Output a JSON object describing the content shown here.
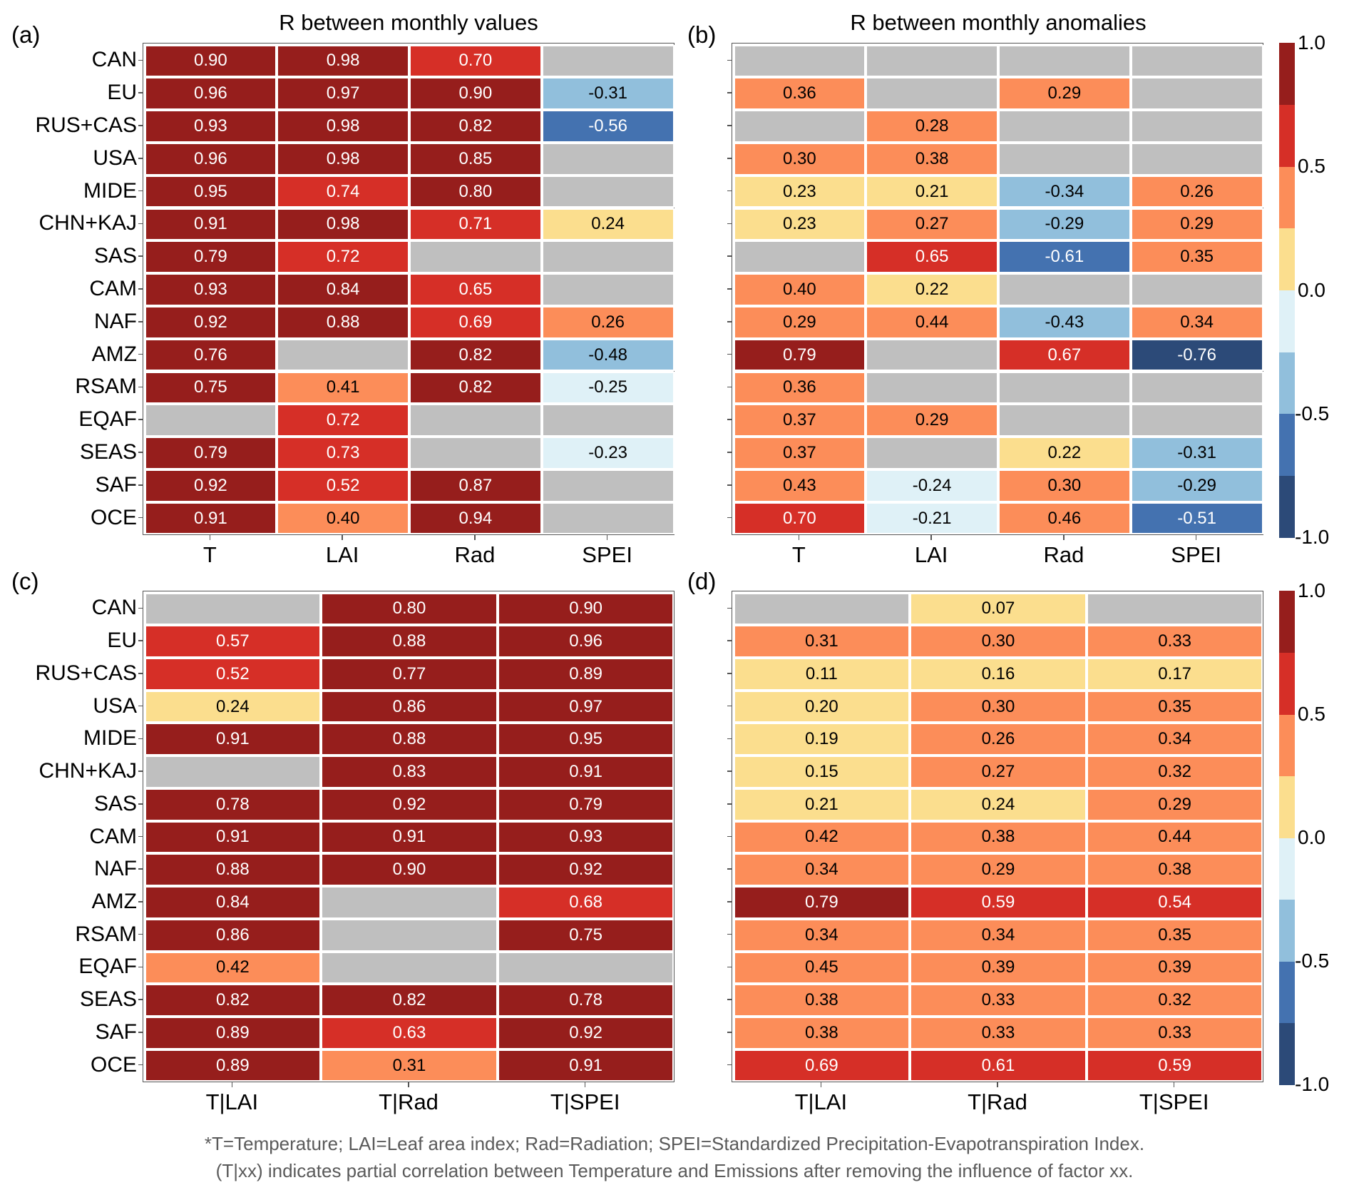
{
  "chart_data": [
    {
      "id": "a",
      "type": "heatmap",
      "panel_label": "(a)",
      "title": "R between monthly values",
      "rows": [
        "CAN",
        "EU",
        "RUS+CAS",
        "USA",
        "MIDE",
        "CHN+KAJ",
        "SAS",
        "CAM",
        "NAF",
        "AMZ",
        "RSAM",
        "EQAF",
        "SEAS",
        "SAF",
        "OCE"
      ],
      "columns": [
        "T",
        "LAI",
        "Rad",
        "SPEI"
      ],
      "show_row_labels": true,
      "values": [
        [
          0.9,
          0.98,
          0.7,
          null
        ],
        [
          0.96,
          0.97,
          0.9,
          -0.31
        ],
        [
          0.93,
          0.98,
          0.82,
          -0.56
        ],
        [
          0.96,
          0.98,
          0.85,
          null
        ],
        [
          0.95,
          0.74,
          0.8,
          null
        ],
        [
          0.91,
          0.98,
          0.71,
          0.24
        ],
        [
          0.79,
          0.72,
          null,
          null
        ],
        [
          0.93,
          0.84,
          0.65,
          null
        ],
        [
          0.92,
          0.88,
          0.69,
          0.26
        ],
        [
          0.76,
          null,
          0.82,
          -0.48
        ],
        [
          0.75,
          0.41,
          0.82,
          -0.25
        ],
        [
          null,
          0.72,
          null,
          null
        ],
        [
          0.79,
          0.73,
          null,
          -0.23
        ],
        [
          0.92,
          0.52,
          0.87,
          null
        ],
        [
          0.91,
          0.4,
          0.94,
          null
        ]
      ]
    },
    {
      "id": "b",
      "type": "heatmap",
      "panel_label": "(b)",
      "title": "R between monthly anomalies",
      "rows": [
        "CAN",
        "EU",
        "RUS+CAS",
        "USA",
        "MIDE",
        "CHN+KAJ",
        "SAS",
        "CAM",
        "NAF",
        "AMZ",
        "RSAM",
        "EQAF",
        "SEAS",
        "SAF",
        "OCE"
      ],
      "columns": [
        "T",
        "LAI",
        "Rad",
        "SPEI"
      ],
      "show_row_labels": false,
      "values": [
        [
          null,
          null,
          null,
          null
        ],
        [
          0.36,
          null,
          0.29,
          null
        ],
        [
          null,
          0.28,
          null,
          null
        ],
        [
          0.3,
          0.38,
          null,
          null
        ],
        [
          0.23,
          0.21,
          -0.34,
          0.26
        ],
        [
          0.23,
          0.27,
          -0.29,
          0.29
        ],
        [
          null,
          0.65,
          -0.61,
          0.35
        ],
        [
          0.4,
          0.22,
          null,
          null
        ],
        [
          0.29,
          0.44,
          -0.43,
          0.34
        ],
        [
          0.79,
          null,
          0.67,
          -0.76
        ],
        [
          0.36,
          null,
          null,
          null
        ],
        [
          0.37,
          0.29,
          null,
          null
        ],
        [
          0.37,
          null,
          0.22,
          -0.31
        ],
        [
          0.43,
          -0.24,
          0.3,
          -0.29
        ],
        [
          0.7,
          -0.21,
          0.46,
          -0.51
        ]
      ],
      "colorbar": {
        "ticks": [
          "1.0",
          "0.5",
          "0.0",
          "-0.5",
          "-1.0"
        ],
        "range": [
          -1.0,
          1.0
        ]
      }
    },
    {
      "id": "c",
      "type": "heatmap",
      "panel_label": "(c)",
      "title": "",
      "rows": [
        "CAN",
        "EU",
        "RUS+CAS",
        "USA",
        "MIDE",
        "CHN+KAJ",
        "SAS",
        "CAM",
        "NAF",
        "AMZ",
        "RSAM",
        "EQAF",
        "SEAS",
        "SAF",
        "OCE"
      ],
      "columns": [
        "T|LAI",
        "T|Rad",
        "T|SPEI"
      ],
      "show_row_labels": true,
      "values": [
        [
          null,
          0.8,
          0.9
        ],
        [
          0.57,
          0.88,
          0.96
        ],
        [
          0.52,
          0.77,
          0.89
        ],
        [
          0.24,
          0.86,
          0.97
        ],
        [
          0.91,
          0.88,
          0.95
        ],
        [
          null,
          0.83,
          0.91
        ],
        [
          0.78,
          0.92,
          0.79
        ],
        [
          0.91,
          0.91,
          0.93
        ],
        [
          0.88,
          0.9,
          0.92
        ],
        [
          0.84,
          null,
          0.68
        ],
        [
          0.86,
          null,
          0.75
        ],
        [
          0.42,
          null,
          null
        ],
        [
          0.82,
          0.82,
          0.78
        ],
        [
          0.89,
          0.63,
          0.92
        ],
        [
          0.89,
          0.31,
          0.91
        ]
      ]
    },
    {
      "id": "d",
      "type": "heatmap",
      "panel_label": "(d)",
      "title": "",
      "rows": [
        "CAN",
        "EU",
        "RUS+CAS",
        "USA",
        "MIDE",
        "CHN+KAJ",
        "SAS",
        "CAM",
        "NAF",
        "AMZ",
        "RSAM",
        "EQAF",
        "SEAS",
        "SAF",
        "OCE"
      ],
      "columns": [
        "T|LAI",
        "T|Rad",
        "T|SPEI"
      ],
      "show_row_labels": false,
      "values": [
        [
          null,
          0.07,
          null
        ],
        [
          0.31,
          0.3,
          0.33
        ],
        [
          0.11,
          0.16,
          0.17
        ],
        [
          0.2,
          0.3,
          0.35
        ],
        [
          0.19,
          0.26,
          0.34
        ],
        [
          0.15,
          0.27,
          0.32
        ],
        [
          0.21,
          0.24,
          0.29
        ],
        [
          0.42,
          0.38,
          0.44
        ],
        [
          0.34,
          0.29,
          0.38
        ],
        [
          0.79,
          0.59,
          0.54
        ],
        [
          0.34,
          0.34,
          0.35
        ],
        [
          0.45,
          0.39,
          0.39
        ],
        [
          0.38,
          0.33,
          0.32
        ],
        [
          0.38,
          0.33,
          0.33
        ],
        [
          0.69,
          0.61,
          0.59
        ]
      ],
      "colorbar": {
        "ticks": [
          "1.0",
          "0.5",
          "0.0",
          "-0.5",
          "-1.0"
        ],
        "range": [
          -1.0,
          1.0
        ]
      }
    }
  ],
  "colormap": {
    "bin_width": 0.25,
    "bins_low_to_high": [
      "#2c4a78",
      "#4472b0",
      "#91bfdc",
      "#dff1f7",
      "#fbde8e",
      "#fc8d59",
      "#d62f27",
      "#961e1c"
    ],
    "missing": "#bfbfbf",
    "dark_text_threshold": 0.5
  },
  "footnote": {
    "line1": "*T=Temperature; LAI=Leaf area index; Rad=Radiation; SPEI=Standardized Precipitation-Evapotranspiration Index.",
    "line2": "(T|xx) indicates partial correlation between Temperature and Emissions after removing the influence of factor xx."
  }
}
